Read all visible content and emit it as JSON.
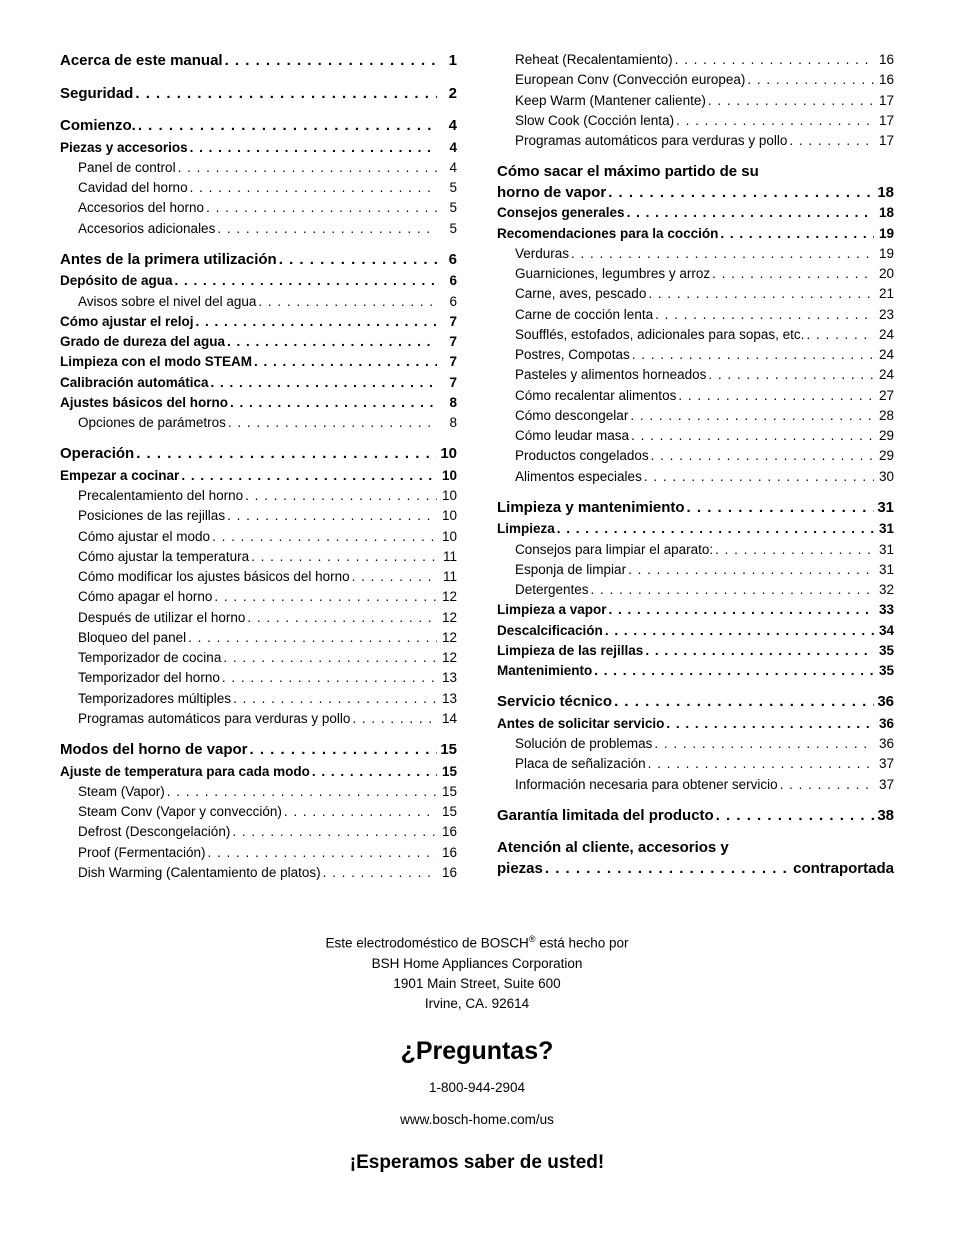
{
  "toc": {
    "left": [
      {
        "level": 0,
        "label": "Acerca de este manual",
        "page": "1"
      },
      {
        "level": 0,
        "label": "Seguridad",
        "page": "2"
      },
      {
        "level": 0,
        "label": "Comienzo.",
        "page": "4"
      },
      {
        "level": 1,
        "label": "Piezas y accesorios",
        "page": "4"
      },
      {
        "level": 2,
        "label": "Panel de control",
        "page": "4"
      },
      {
        "level": 2,
        "label": "Cavidad del horno",
        "page": "5"
      },
      {
        "level": 2,
        "label": "Accesorios del horno",
        "page": "5"
      },
      {
        "level": 2,
        "label": "Accesorios adicionales",
        "page": "5"
      },
      {
        "level": 0,
        "label": "Antes de la primera utilización",
        "page": "6"
      },
      {
        "level": 1,
        "label": "Depósito de agua",
        "page": "6"
      },
      {
        "level": 2,
        "label": "Avisos sobre el nivel del agua",
        "page": "6"
      },
      {
        "level": 1,
        "label": "Cómo ajustar el reloj",
        "page": "7"
      },
      {
        "level": 1,
        "label": "Grado de dureza del agua",
        "page": "7"
      },
      {
        "level": 1,
        "label": "Limpieza con el modo STEAM",
        "page": "7"
      },
      {
        "level": 1,
        "label": "Calibración automática",
        "page": "7"
      },
      {
        "level": 1,
        "label": "Ajustes básicos del horno",
        "page": "8"
      },
      {
        "level": 2,
        "label": "Opciones de parámetros",
        "page": "8"
      },
      {
        "level": 0,
        "label": "Operación",
        "page": "10"
      },
      {
        "level": 1,
        "label": "Empezar a cocinar",
        "page": "10"
      },
      {
        "level": 2,
        "label": "Precalentamiento del horno",
        "page": "10"
      },
      {
        "level": 2,
        "label": "Posiciones de las rejillas",
        "page": "10"
      },
      {
        "level": 2,
        "label": "Cómo ajustar el modo",
        "page": "10"
      },
      {
        "level": 2,
        "label": "Cómo ajustar la temperatura",
        "page": "11"
      },
      {
        "level": 2,
        "label": "Cómo modificar los ajustes básicos del horno",
        "page": "11"
      },
      {
        "level": 2,
        "label": "Cómo apagar el horno",
        "page": "12"
      },
      {
        "level": 2,
        "label": "Después de utilizar el horno",
        "page": "12"
      },
      {
        "level": 2,
        "label": "Bloqueo del panel",
        "page": "12"
      },
      {
        "level": 2,
        "label": "Temporizador de cocina",
        "page": "12"
      },
      {
        "level": 2,
        "label": "Temporizador del horno",
        "page": "13"
      },
      {
        "level": 2,
        "label": "Temporizadores múltiples",
        "page": "13"
      },
      {
        "level": 2,
        "label": "Programas automáticos para verduras y pollo",
        "page": "14"
      },
      {
        "level": 0,
        "label": "Modos del horno de vapor",
        "page": "15"
      },
      {
        "level": 1,
        "label": "Ajuste de temperatura para cada modo",
        "page": "15"
      },
      {
        "level": 2,
        "label": "Steam (Vapor)",
        "page": "15"
      },
      {
        "level": 2,
        "label": "Steam Conv (Vapor y convección)",
        "page": "15"
      },
      {
        "level": 2,
        "label": "Defrost (Descongelación)",
        "page": "16"
      },
      {
        "level": 2,
        "label": "Proof (Fermentación)",
        "page": "16"
      },
      {
        "level": 2,
        "label": "Dish Warming (Calentamiento de platos)",
        "page": "16"
      }
    ],
    "right": [
      {
        "level": 2,
        "label": "Reheat (Recalentamiento)",
        "page": "16"
      },
      {
        "level": 2,
        "label": "European Conv (Convección europea)",
        "page": "16"
      },
      {
        "level": 2,
        "label": "Keep Warm (Mantener caliente)",
        "page": "17"
      },
      {
        "level": 2,
        "label": "Slow Cook (Cocción lenta)",
        "page": "17"
      },
      {
        "level": 2,
        "label": "Programas automáticos para verduras y pollo",
        "page": "17"
      },
      {
        "level": 0,
        "multiline": true,
        "line1": "Cómo sacar el máximo partido de su",
        "label": "horno de vapor",
        "page": "18"
      },
      {
        "level": 1,
        "label": "Consejos generales",
        "page": "18"
      },
      {
        "level": 1,
        "label": "Recomendaciones para la cocción",
        "page": "19"
      },
      {
        "level": 2,
        "label": "Verduras",
        "page": "19"
      },
      {
        "level": 2,
        "label": "Guarniciones, legumbres y arroz",
        "page": "20"
      },
      {
        "level": 2,
        "label": "Carne, aves, pescado",
        "page": "21"
      },
      {
        "level": 2,
        "label": "Carne de cocción lenta",
        "page": "23"
      },
      {
        "level": 2,
        "label": "Soufflés, estofados, adicionales para sopas, etc.",
        "page": "24"
      },
      {
        "level": 2,
        "label": "Postres, Compotas",
        "page": "24"
      },
      {
        "level": 2,
        "label": "Pasteles y alimentos horneados",
        "page": "24"
      },
      {
        "level": 2,
        "label": "Cómo recalentar alimentos",
        "page": "27"
      },
      {
        "level": 2,
        "label": "Cómo descongelar",
        "page": "28"
      },
      {
        "level": 2,
        "label": "Cómo leudar masa",
        "page": "29"
      },
      {
        "level": 2,
        "label": "Productos congelados",
        "page": "29"
      },
      {
        "level": 2,
        "label": "Alimentos especiales",
        "page": "30"
      },
      {
        "level": 0,
        "label": "Limpieza y mantenimiento",
        "page": "31"
      },
      {
        "level": 1,
        "label": "Limpieza",
        "page": "31"
      },
      {
        "level": 2,
        "label": "Consejos para limpiar el aparato:",
        "page": "31"
      },
      {
        "level": 2,
        "label": "Esponja de limpiar",
        "page": "31"
      },
      {
        "level": 2,
        "label": "Detergentes",
        "page": "32"
      },
      {
        "level": 1,
        "label": "Limpieza a vapor",
        "page": "33"
      },
      {
        "level": 1,
        "label": "Descalcificación",
        "page": "34"
      },
      {
        "level": 1,
        "label": "Limpieza de las rejillas",
        "page": "35"
      },
      {
        "level": 1,
        "label": "Mantenimiento",
        "page": "35"
      },
      {
        "level": 0,
        "label": "Servicio técnico",
        "page": "36"
      },
      {
        "level": 1,
        "label": "Antes de solicitar servicio",
        "page": "36"
      },
      {
        "level": 2,
        "label": "Solución de problemas",
        "page": "36"
      },
      {
        "level": 2,
        "label": "Placa de señalización",
        "page": "37"
      },
      {
        "level": 2,
        "label": "Información necesaria para obtener servicio",
        "page": "37"
      },
      {
        "level": 0,
        "label": "Garantía limitada del producto",
        "page": "38"
      },
      {
        "level": 0,
        "multiline": true,
        "line1": "Atención al cliente, accesorios y",
        "label": "piezas",
        "page": "contraportada"
      }
    ]
  },
  "footer": {
    "brand_prefix": "Este electrodoméstico de BOSCH",
    "brand_suffix": " está hecho por",
    "company": "BSH Home Appliances Corporation",
    "street": "1901 Main Street, Suite 600",
    "city": "Irvine, CA. 92614",
    "questions": "¿Preguntas?",
    "phone": "1-800-944-2904",
    "website": "www.bosch-home.com/us",
    "closing": "¡Esperamos saber de usted!"
  }
}
